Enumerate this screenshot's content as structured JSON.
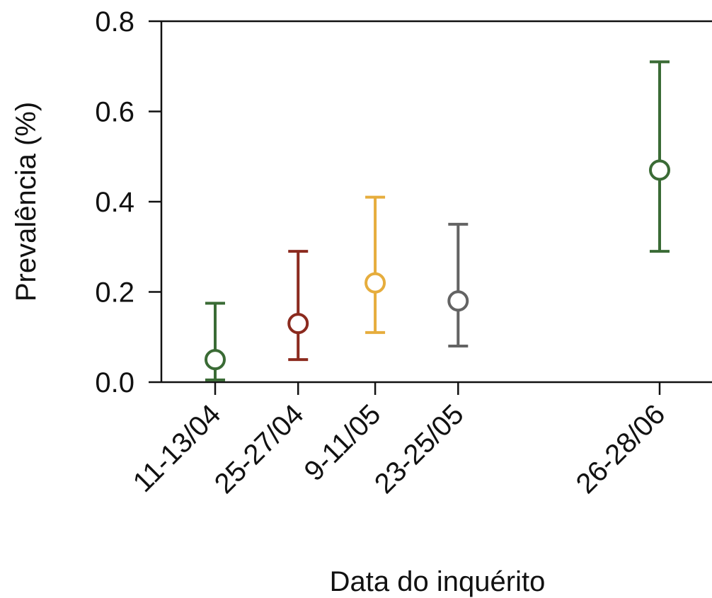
{
  "chart_data": {
    "type": "scatter",
    "title": "",
    "xlabel": "Data do inquérito",
    "ylabel": "Prevalência (%)",
    "ylim": [
      0,
      0.8
    ],
    "yticks": [
      "0.0",
      "0.2",
      "0.4",
      "0.6",
      "0.8"
    ],
    "grid": false,
    "legend": "none",
    "categories": [
      "11-13/04",
      "25-27/04",
      "9-11/05",
      "23-25/05",
      "26-28/06"
    ],
    "dates_day_of_year": [
      103,
      117,
      130,
      144,
      178
    ],
    "points": [
      {
        "label": "11-13/04",
        "value": 0.05,
        "lower": 0.005,
        "upper": 0.175,
        "color": "#3a6b35"
      },
      {
        "label": "25-27/04",
        "value": 0.13,
        "lower": 0.05,
        "upper": 0.29,
        "color": "#8b2a1e"
      },
      {
        "label": "9-11/05",
        "value": 0.22,
        "lower": 0.11,
        "upper": 0.41,
        "color": "#e6ad3d"
      },
      {
        "label": "23-25/05",
        "value": 0.18,
        "lower": 0.08,
        "upper": 0.35,
        "color": "#636363"
      },
      {
        "label": "26-28/06",
        "value": 0.47,
        "lower": 0.29,
        "upper": 0.71,
        "color": "#3a6b35"
      }
    ]
  }
}
